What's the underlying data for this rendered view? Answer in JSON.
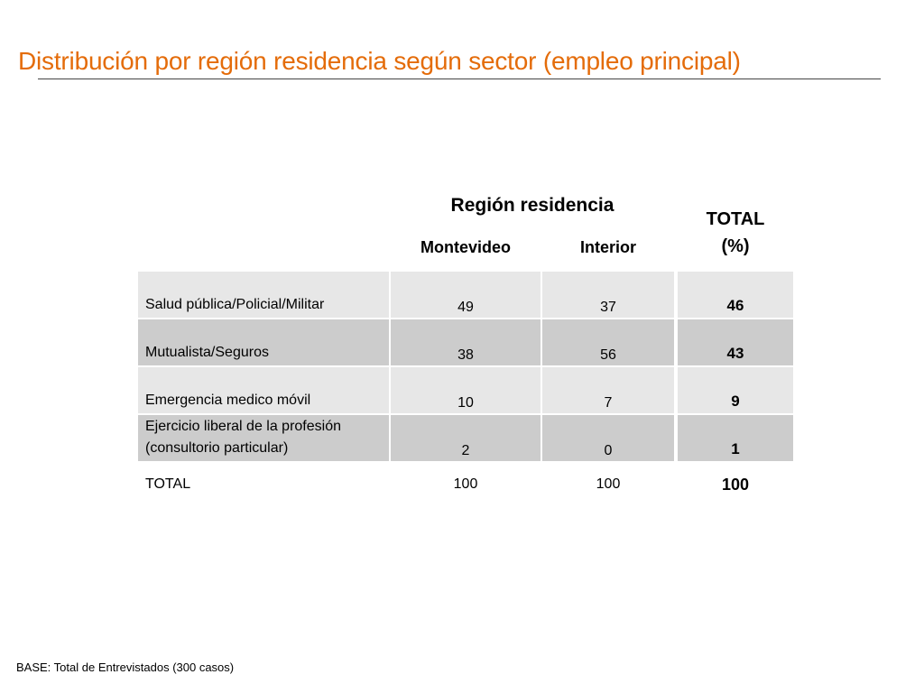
{
  "title": "Distribución por región residencia según sector (empleo principal)",
  "table": {
    "group_header": "Región residencia",
    "columns": [
      "Montevideo",
      "Interior"
    ],
    "total_header_line1": "TOTAL",
    "total_header_line2": "(%)",
    "rows": [
      {
        "label_line1": "",
        "label_line2": "Salud pública/Policial/Militar",
        "montevideo": "49",
        "interior": "37",
        "total": "46"
      },
      {
        "label_line1": "",
        "label_line2": "Mutualista/Seguros",
        "montevideo": "38",
        "interior": "56",
        "total": "43"
      },
      {
        "label_line1": "",
        "label_line2": "Emergencia medico móvil",
        "montevideo": "10",
        "interior": "7",
        "total": "9"
      },
      {
        "label_line1": "Ejercicio liberal de la profesión",
        "label_line2": "(consultorio particular)",
        "montevideo": "2",
        "interior": "0",
        "total": "1"
      }
    ],
    "total_row": {
      "label": "TOTAL",
      "montevideo": "100",
      "interior": "100",
      "total": "100"
    }
  },
  "base_note": "BASE: Total de Entrevistados (300 casos)",
  "colors": {
    "title": "#e46c0a",
    "row_light": "#e7e7e7",
    "row_dark": "#cccccc"
  }
}
